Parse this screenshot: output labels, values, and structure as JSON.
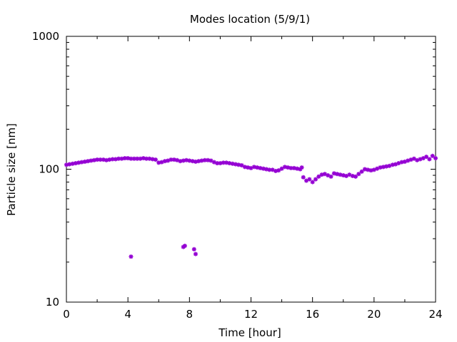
{
  "chart_data": {
    "type": "scatter",
    "title": "Modes location (5/9/1)",
    "xlabel": "Time [hour]",
    "ylabel": "Particle size [nm]",
    "xlim": [
      0,
      24
    ],
    "ylim": [
      10,
      1000
    ],
    "yscale": "log",
    "xticks": [
      0,
      4,
      8,
      12,
      16,
      20,
      24
    ],
    "xtick_labels": [
      "0",
      "4",
      "8",
      "12",
      "16",
      "20",
      "24"
    ],
    "yticks": [
      10,
      100,
      1000
    ],
    "ytick_labels": [
      "10",
      "100",
      "1000"
    ],
    "grid": false,
    "marker_color": "#9400d3",
    "series": [
      {
        "name": "",
        "x": [
          0,
          0.2,
          0.4,
          0.6,
          0.8,
          1,
          1.2,
          1.4,
          1.6,
          1.8,
          2,
          2.2,
          2.4,
          2.6,
          2.8,
          3,
          3.2,
          3.4,
          3.6,
          3.8,
          4,
          4.2,
          4.4,
          4.6,
          4.8,
          5,
          5.2,
          5.4,
          5.6,
          5.8,
          6,
          6.2,
          6.4,
          6.6,
          6.8,
          7,
          7.2,
          7.4,
          7.6,
          7.8,
          8,
          8.2,
          8.4,
          8.6,
          8.8,
          9,
          9.2,
          9.4,
          9.6,
          9.8,
          10,
          10.2,
          10.4,
          10.6,
          10.8,
          11,
          11.2,
          11.4,
          11.6,
          11.8,
          12,
          12.2,
          12.4,
          12.6,
          12.8,
          13,
          13.2,
          13.4,
          13.6,
          13.8,
          14,
          14.2,
          14.4,
          14.6,
          14.8,
          15,
          15.2,
          15.3,
          15.4,
          15.6,
          15.8,
          16,
          16.2,
          16.4,
          16.6,
          16.8,
          17,
          17.2,
          17.4,
          17.6,
          17.8,
          18,
          18.2,
          18.4,
          18.6,
          18.8,
          19,
          19.2,
          19.4,
          19.6,
          19.8,
          20,
          20.2,
          20.4,
          20.6,
          20.8,
          21,
          21.2,
          21.4,
          21.6,
          21.8,
          22,
          22.2,
          22.4,
          22.6,
          22.8,
          23,
          23.2,
          23.4,
          23.6,
          23.8,
          24,
          4.2,
          7.6,
          7.7,
          8.3,
          8.4
        ],
        "y": [
          108,
          109,
          110,
          111,
          112,
          113,
          114,
          115,
          116,
          117,
          118,
          118,
          118,
          117,
          118,
          119,
          119,
          120,
          120,
          121,
          121,
          120,
          120,
          120,
          120,
          121,
          120,
          120,
          119,
          118,
          112,
          113,
          115,
          116,
          118,
          118,
          117,
          115,
          116,
          117,
          116,
          115,
          114,
          115,
          116,
          117,
          117,
          116,
          113,
          111,
          111,
          112,
          112,
          111,
          110,
          109,
          108,
          107,
          104,
          103,
          102,
          104,
          103,
          102,
          101,
          100,
          99,
          99,
          97,
          98,
          101,
          104,
          103,
          102,
          102,
          101,
          100,
          103,
          87,
          82,
          84,
          80,
          84,
          88,
          91,
          92,
          90,
          88,
          93,
          92,
          91,
          90,
          89,
          91,
          89,
          88,
          92,
          96,
          100,
          99,
          98,
          99,
          101,
          103,
          104,
          105,
          106,
          108,
          109,
          111,
          113,
          114,
          116,
          118,
          120,
          117,
          119,
          121,
          124,
          119,
          126,
          121,
          22,
          26,
          26.5,
          25,
          23
        ]
      }
    ]
  }
}
